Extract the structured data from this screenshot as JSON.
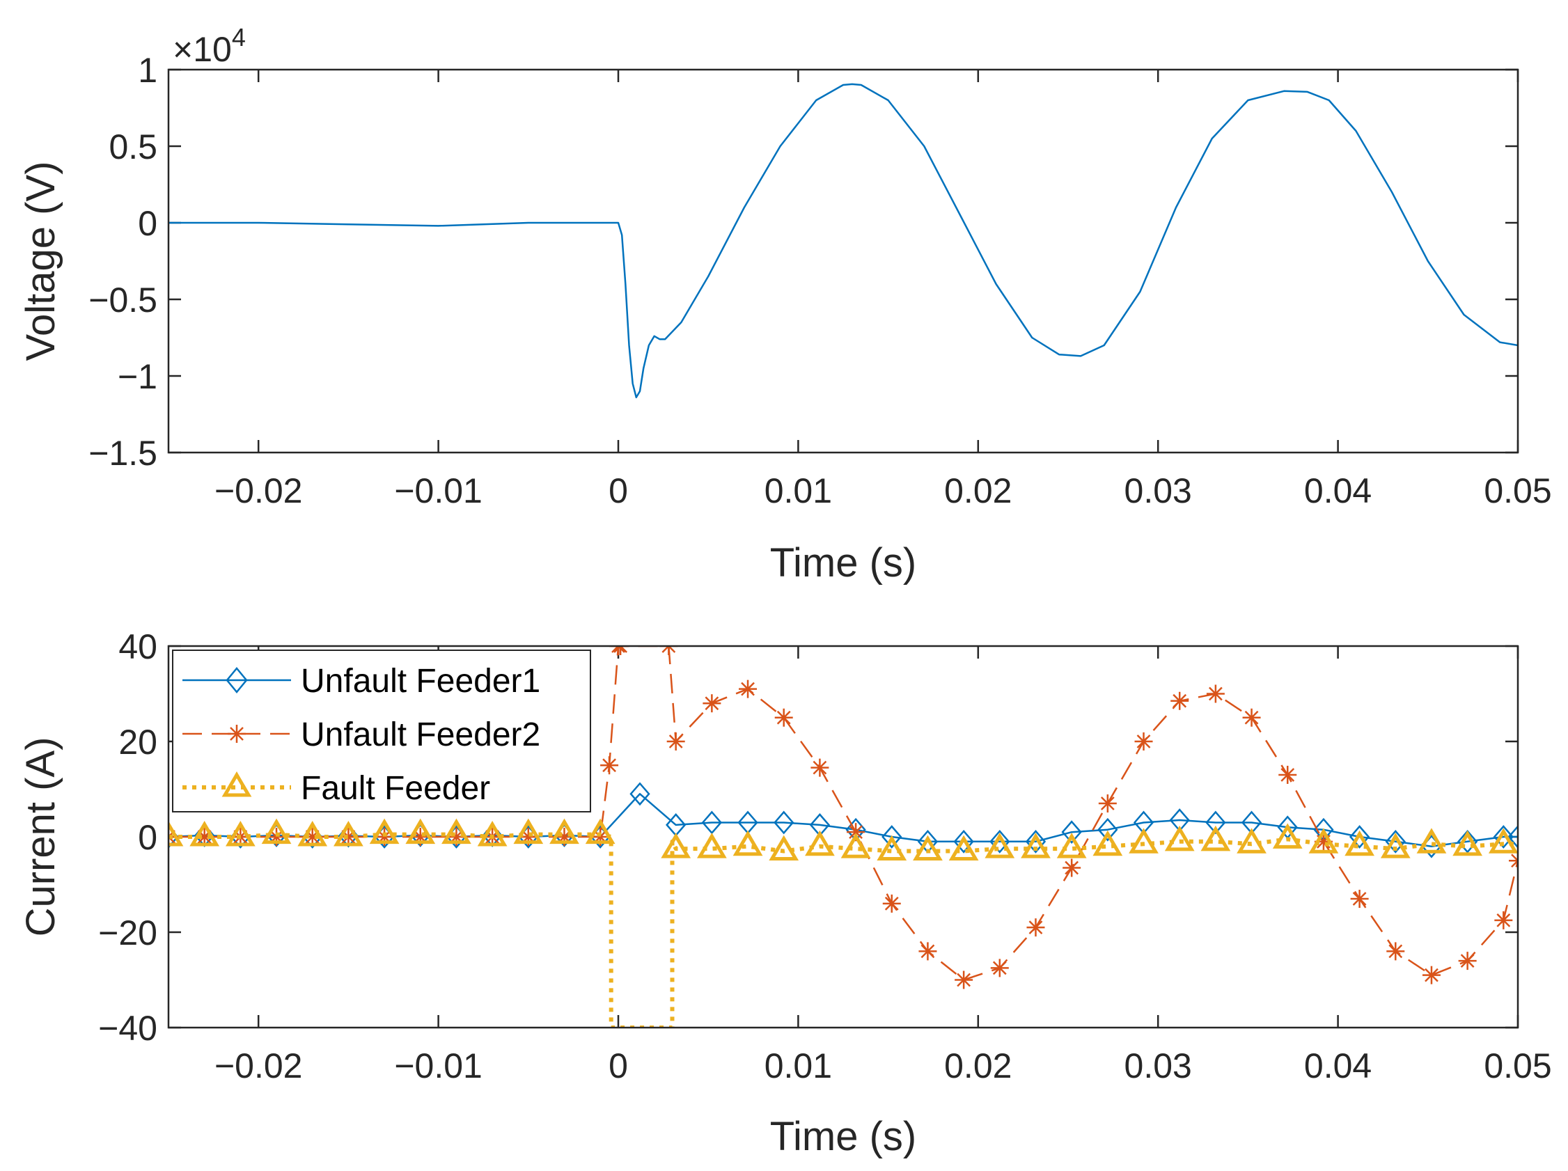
{
  "chart_data": [
    {
      "type": "line",
      "xlabel": "Time (s)",
      "ylabel": "Voltage (V)",
      "xlim": [
        -0.025,
        0.05
      ],
      "ylim": [
        -1.5,
        1
      ],
      "y_scale_exponent_label": "×10",
      "y_scale_exponent_power": "4",
      "x_ticks": [
        -0.02,
        -0.01,
        0,
        0.01,
        0.02,
        0.03,
        0.04,
        0.05
      ],
      "x_tick_labels": [
        "−0.02",
        "−0.01",
        "0",
        "0.01",
        "0.02",
        "0.03",
        "0.04",
        "0.05"
      ],
      "y_ticks": [
        1,
        0.5,
        0,
        -0.5,
        -1,
        -1.5
      ],
      "y_tick_labels": [
        "1",
        "0.5",
        "0",
        "−0.5",
        "−1",
        "−1.5"
      ],
      "grid": false,
      "series": [
        {
          "color": "#0072BD",
          "x": [
            -0.025,
            -0.02,
            -0.015,
            -0.01,
            -0.005,
            0,
            0.0002,
            0.0004,
            0.0006,
            0.0008,
            0.001,
            0.0012,
            0.0014,
            0.0017,
            0.002,
            0.0023,
            0.0026,
            0.0035,
            0.005,
            0.007,
            0.009,
            0.011,
            0.0125,
            0.013,
            0.0135,
            0.015,
            0.017,
            0.019,
            0.021,
            0.023,
            0.0245,
            0.0257,
            0.027,
            0.029,
            0.031,
            0.033,
            0.035,
            0.037,
            0.0383,
            0.0395,
            0.041,
            0.043,
            0.045,
            0.047,
            0.049,
            0.05
          ],
          "y": [
            0,
            0,
            -0.01,
            -0.02,
            0,
            0,
            -0.08,
            -0.4,
            -0.8,
            -1.05,
            -1.14,
            -1.1,
            -0.95,
            -0.8,
            -0.74,
            -0.76,
            -0.76,
            -0.65,
            -0.35,
            0.1,
            0.5,
            0.8,
            0.9,
            0.905,
            0.9,
            0.8,
            0.5,
            0.05,
            -0.4,
            -0.75,
            -0.86,
            -0.87,
            -0.8,
            -0.45,
            0.1,
            0.55,
            0.8,
            0.86,
            0.855,
            0.8,
            0.6,
            0.2,
            -0.25,
            -0.6,
            -0.78,
            -0.8
          ]
        }
      ]
    },
    {
      "type": "line",
      "xlabel": "Time (s)",
      "ylabel": "Current (A)",
      "xlim": [
        -0.025,
        0.05
      ],
      "ylim": [
        -40,
        40
      ],
      "x_ticks": [
        -0.02,
        -0.01,
        0,
        0.01,
        0.02,
        0.03,
        0.04,
        0.05
      ],
      "x_tick_labels": [
        "−0.02",
        "−0.01",
        "0",
        "0.01",
        "0.02",
        "0.03",
        "0.04",
        "0.05"
      ],
      "y_ticks": [
        40,
        20,
        0,
        -20,
        -40
      ],
      "y_tick_labels": [
        "40",
        "20",
        "0",
        "−20",
        "−40"
      ],
      "grid": false,
      "legend_position": "top-left",
      "series": [
        {
          "name": "Unfault Feeder1",
          "color": "#0072BD",
          "marker": "diamond",
          "line_style": "solid",
          "x": [
            -0.025,
            -0.023,
            -0.021,
            -0.019,
            -0.017,
            -0.015,
            -0.013,
            -0.011,
            -0.009,
            -0.007,
            -0.005,
            -0.003,
            -0.001,
            0.0012,
            0.0032,
            0.0052,
            0.0072,
            0.0092,
            0.0112,
            0.0132,
            0.0152,
            0.0172,
            0.0192,
            0.0212,
            0.0232,
            0.0252,
            0.0272,
            0.0292,
            0.0312,
            0.0332,
            0.0352,
            0.0372,
            0.0392,
            0.0412,
            0.0432,
            0.0452,
            0.0472,
            0.0492,
            0.05
          ],
          "y": [
            0,
            0.3,
            0,
            0.3,
            0,
            0.2,
            0,
            0.3,
            0,
            0.3,
            0,
            0.3,
            0,
            9,
            2.5,
            3,
            3,
            3,
            2.5,
            1.5,
            0,
            -1,
            -1,
            -1,
            -1,
            1,
            1.5,
            3,
            3.5,
            3,
            3,
            2,
            1.5,
            0,
            -1,
            -2,
            -1,
            0,
            0
          ]
        },
        {
          "name": "Unfault Feeder2",
          "color": "#D95319",
          "marker": "asterisk",
          "line_style": "dashed",
          "x": [
            -0.025,
            -0.023,
            -0.021,
            -0.019,
            -0.017,
            -0.015,
            -0.013,
            -0.011,
            -0.009,
            -0.007,
            -0.005,
            -0.003,
            -0.001,
            -0.0005,
            0,
            0.00012,
            0.0028,
            0.0032,
            0.0052,
            0.0072,
            0.0092,
            0.0112,
            0.0132,
            0.0152,
            0.0172,
            0.0192,
            0.0212,
            0.0232,
            0.0252,
            0.0272,
            0.0292,
            0.0312,
            0.0332,
            0.0352,
            0.0372,
            0.0392,
            0.0412,
            0.0432,
            0.0452,
            0.0472,
            0.0492,
            0.05
          ],
          "y": [
            0,
            0,
            0,
            0,
            0,
            0,
            0,
            0,
            0,
            0,
            0,
            0,
            0,
            15,
            40,
            40,
            40,
            20,
            28,
            31,
            25,
            14.5,
            1,
            -14,
            -24,
            -30,
            -27.5,
            -19,
            -6.5,
            7,
            20,
            28.5,
            30,
            25,
            13,
            -1,
            -13,
            -24,
            -29,
            -26,
            -17.5,
            -5
          ]
        },
        {
          "name": "Fault Feeder",
          "color": "#EDB120",
          "marker": "triangle",
          "line_style": "dotted",
          "x": [
            -0.025,
            -0.023,
            -0.021,
            -0.019,
            -0.017,
            -0.015,
            -0.013,
            -0.011,
            -0.009,
            -0.007,
            -0.005,
            -0.003,
            -0.001,
            -0.0004,
            -0.0004,
            0.003,
            0.003,
            0.0032,
            0.0052,
            0.0072,
            0.0092,
            0.0112,
            0.0132,
            0.0152,
            0.0172,
            0.0192,
            0.0212,
            0.0232,
            0.0252,
            0.0272,
            0.0292,
            0.0312,
            0.0332,
            0.0352,
            0.0372,
            0.0392,
            0.0412,
            0.0432,
            0.0452,
            0.0472,
            0.0492,
            0.05
          ],
          "y": [
            0,
            0,
            0,
            0.5,
            0,
            0,
            0.5,
            0.5,
            0.5,
            0,
            0.5,
            0.5,
            0.5,
            0,
            -40,
            -40,
            -1,
            -2.5,
            -2.5,
            -2,
            -3,
            -2,
            -2.5,
            -3,
            -3,
            -3,
            -2.5,
            -2.5,
            -2.5,
            -2,
            -1.5,
            -1,
            -1,
            -1.5,
            -0.5,
            -1.5,
            -2,
            -2.5,
            -1.5,
            -2,
            -1.5,
            -1.5
          ],
          "marker_x": [
            -0.025,
            -0.023,
            -0.021,
            -0.019,
            -0.017,
            -0.015,
            -0.013,
            -0.011,
            -0.009,
            -0.007,
            -0.005,
            -0.003,
            -0.001,
            0.0032,
            0.0052,
            0.0072,
            0.0092,
            0.0112,
            0.0132,
            0.0152,
            0.0172,
            0.0192,
            0.0212,
            0.0232,
            0.0252,
            0.0272,
            0.0292,
            0.0312,
            0.0332,
            0.0352,
            0.0372,
            0.0392,
            0.0412,
            0.0432,
            0.0452,
            0.0472,
            0.0492
          ],
          "marker_y": [
            0,
            0,
            0,
            0.5,
            0,
            0,
            0.5,
            0.5,
            0.5,
            0,
            0.5,
            0.5,
            0.5,
            -2.5,
            -2.5,
            -2,
            -3,
            -2,
            -2.5,
            -3,
            -3,
            -3,
            -2.5,
            -2.5,
            -2.5,
            -2,
            -1.5,
            -1,
            -1,
            -1.5,
            -0.5,
            -1.5,
            -2,
            -2.5,
            -1.5,
            -2,
            -1.5
          ]
        }
      ]
    }
  ]
}
